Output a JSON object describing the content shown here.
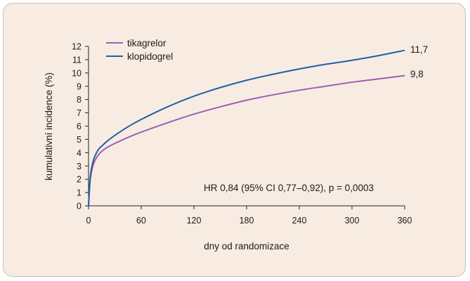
{
  "chart_data": {
    "type": "line",
    "title": "",
    "xlabel": "dny od randomizace",
    "ylabel": "kumulativní incidence (%)",
    "xlim": [
      0,
      360
    ],
    "ylim": [
      0,
      12
    ],
    "xticks": [
      "0",
      "60",
      "120",
      "180",
      "240",
      "300",
      "360"
    ],
    "yticks": [
      "0",
      "1",
      "2",
      "3",
      "4",
      "5",
      "6",
      "7",
      "8",
      "9",
      "10",
      "11",
      "12"
    ],
    "grid": false,
    "legend_position": "top-left",
    "annotation": "HR 0,84 (95% CI 0,77–0,92), p = 0,0003",
    "series": [
      {
        "name": "tikagrelor",
        "color": "#9b5fb5",
        "end_label": "9,8",
        "x": [
          0,
          2,
          5,
          8,
          12,
          16,
          20,
          30,
          45,
          60,
          90,
          120,
          150,
          180,
          210,
          240,
          270,
          300,
          330,
          360
        ],
        "y": [
          0,
          2.0,
          3.0,
          3.5,
          3.9,
          4.15,
          4.35,
          4.7,
          5.15,
          5.55,
          6.25,
          6.9,
          7.45,
          7.95,
          8.35,
          8.7,
          9.0,
          9.3,
          9.55,
          9.8
        ]
      },
      {
        "name": "klopidogrel",
        "color": "#1f5fa8",
        "end_label": "11,7",
        "x": [
          0,
          2,
          5,
          8,
          12,
          16,
          20,
          30,
          45,
          60,
          90,
          120,
          150,
          180,
          210,
          240,
          270,
          300,
          330,
          360
        ],
        "y": [
          0,
          2.2,
          3.3,
          3.85,
          4.3,
          4.55,
          4.8,
          5.3,
          5.95,
          6.5,
          7.45,
          8.25,
          8.9,
          9.45,
          9.9,
          10.3,
          10.65,
          10.95,
          11.3,
          11.7
        ]
      }
    ]
  }
}
